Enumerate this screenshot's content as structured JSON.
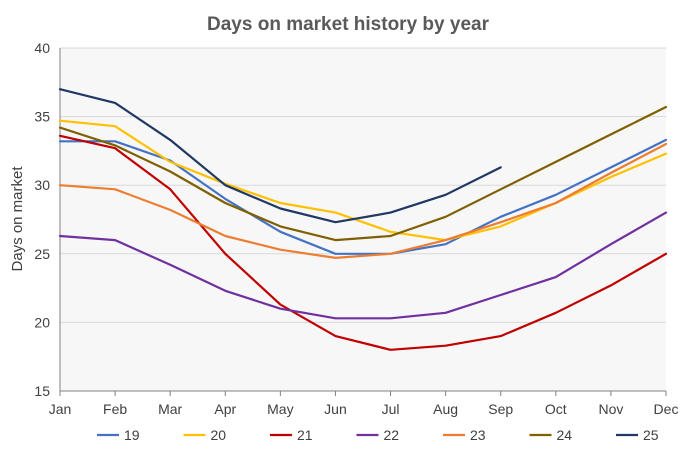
{
  "chart_data": {
    "type": "line",
    "title": "Days on market history by year",
    "xlabel": "",
    "ylabel": "Days on market",
    "categories": [
      "Jan",
      "Feb",
      "Mar",
      "Apr",
      "May",
      "Jun",
      "Jul",
      "Aug",
      "Sep",
      "Oct",
      "Nov",
      "Dec"
    ],
    "ylim": [
      15,
      40
    ],
    "yticks": [
      15,
      20,
      25,
      30,
      35,
      40
    ],
    "grid": true,
    "legend_position": "bottom",
    "series": [
      {
        "name": "19",
        "color": "#4472c4",
        "values": [
          33.2,
          33.2,
          31.8,
          29.0,
          26.6,
          25.0,
          25.0,
          25.7,
          27.7,
          29.3,
          31.3,
          33.3
        ]
      },
      {
        "name": "20",
        "color": "#ffc000",
        "values": [
          34.7,
          34.3,
          31.7,
          30.1,
          28.7,
          28.0,
          26.6,
          26.0,
          27.0,
          28.7,
          30.6,
          32.3
        ]
      },
      {
        "name": "21",
        "color": "#c00000",
        "values": [
          33.6,
          32.7,
          29.7,
          25.0,
          21.3,
          19.0,
          18.0,
          18.3,
          19.0,
          20.7,
          22.7,
          25.0
        ]
      },
      {
        "name": "22",
        "color": "#7030a0",
        "values": [
          26.3,
          26.0,
          24.2,
          22.3,
          21.0,
          20.3,
          20.3,
          20.7,
          22.0,
          23.3,
          25.7,
          28.0
        ]
      },
      {
        "name": "23",
        "color": "#ed7d31",
        "values": [
          30.0,
          29.7,
          28.2,
          26.3,
          25.3,
          24.7,
          25.0,
          26.0,
          27.3,
          28.7,
          30.9,
          33.0
        ]
      },
      {
        "name": "24",
        "color": "#7f6000",
        "values": [
          34.2,
          32.9,
          31.0,
          28.7,
          27.0,
          26.0,
          26.3,
          27.7,
          29.7,
          31.7,
          33.7,
          35.7
        ]
      },
      {
        "name": "25",
        "color": "#203864",
        "values": [
          37.0,
          36.0,
          33.3,
          30.0,
          28.3,
          27.3,
          28.0,
          29.3,
          31.3,
          null,
          null,
          null
        ]
      }
    ]
  }
}
